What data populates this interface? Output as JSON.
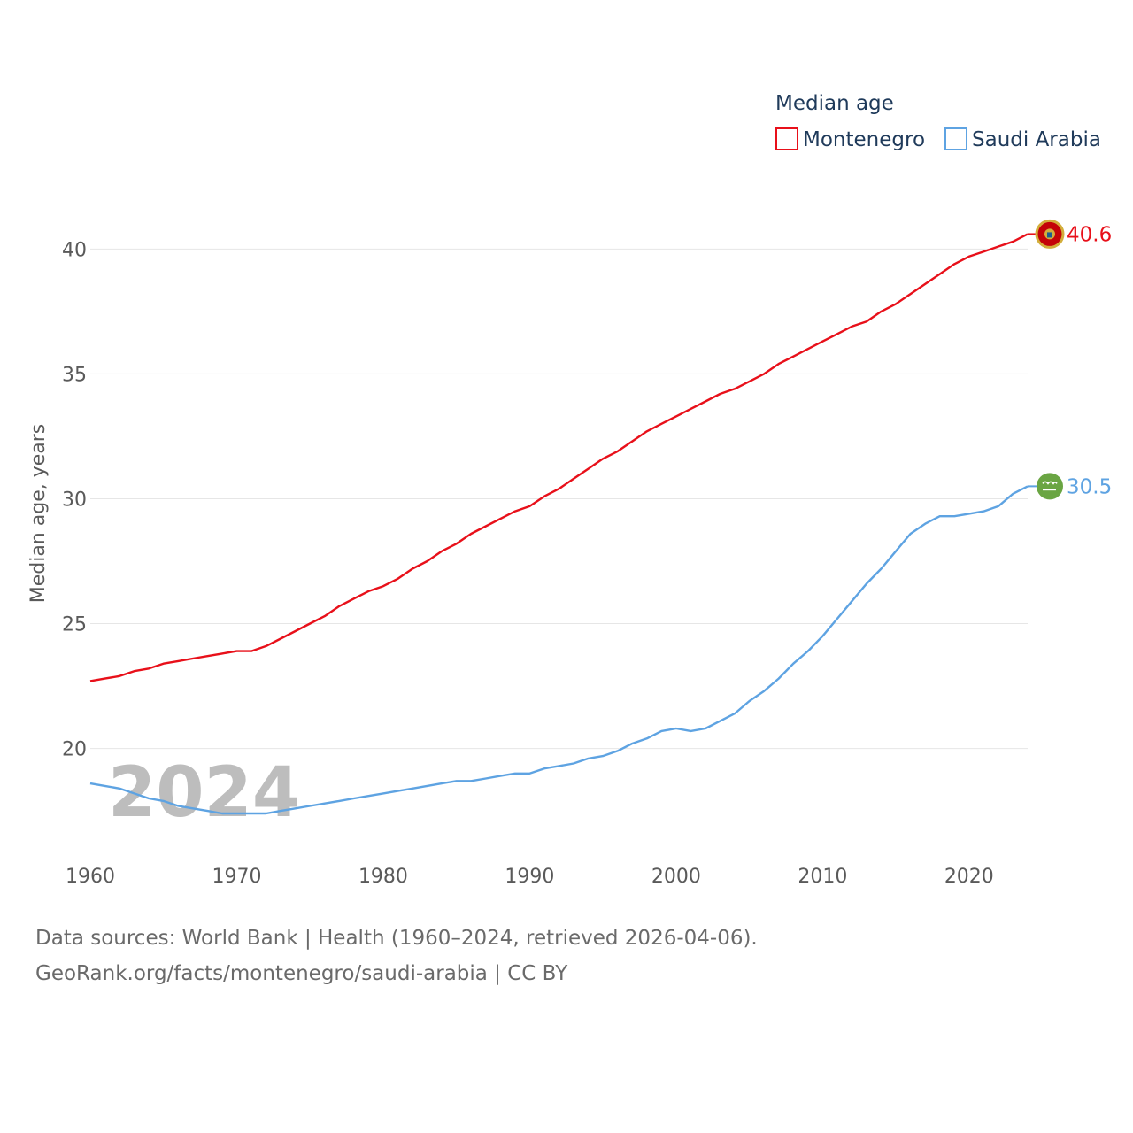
{
  "chart_data": {
    "type": "line",
    "ylabel": "Median age, years",
    "xlabel": "",
    "xlim": [
      1960,
      2024
    ],
    "ylim": [
      16.3,
      42.6
    ],
    "yticks": [
      20,
      25,
      30,
      35,
      40
    ],
    "xticks": [
      1960,
      1970,
      1980,
      1990,
      2000,
      2010,
      2020
    ],
    "grid": true,
    "legend_title": "Median age",
    "legend_position": "top-right",
    "year_watermark": "2024",
    "x": [
      1960,
      1961,
      1962,
      1963,
      1964,
      1965,
      1966,
      1967,
      1968,
      1969,
      1970,
      1971,
      1972,
      1973,
      1974,
      1975,
      1976,
      1977,
      1978,
      1979,
      1980,
      1981,
      1982,
      1983,
      1984,
      1985,
      1986,
      1987,
      1988,
      1989,
      1990,
      1991,
      1992,
      1993,
      1994,
      1995,
      1996,
      1997,
      1998,
      1999,
      2000,
      2001,
      2002,
      2003,
      2004,
      2005,
      2006,
      2007,
      2008,
      2009,
      2010,
      2011,
      2012,
      2013,
      2014,
      2015,
      2016,
      2017,
      2018,
      2019,
      2020,
      2021,
      2022,
      2023,
      2024
    ],
    "series": [
      {
        "name": "Montenegro",
        "color": "#e8101a",
        "end_label": "40.6",
        "flag_icon": "montenegro-flag-icon",
        "values": [
          22.7,
          22.8,
          22.9,
          23.1,
          23.2,
          23.4,
          23.5,
          23.6,
          23.7,
          23.8,
          23.9,
          23.9,
          24.1,
          24.4,
          24.7,
          25.0,
          25.3,
          25.7,
          26.0,
          26.3,
          26.5,
          26.8,
          27.2,
          27.5,
          27.9,
          28.2,
          28.6,
          28.9,
          29.2,
          29.5,
          29.7,
          30.1,
          30.4,
          30.8,
          31.2,
          31.6,
          31.9,
          32.3,
          32.7,
          33.0,
          33.3,
          33.6,
          33.9,
          34.2,
          34.4,
          34.7,
          35.0,
          35.4,
          35.7,
          36.0,
          36.3,
          36.6,
          36.9,
          37.1,
          37.5,
          37.8,
          38.2,
          38.6,
          39.0,
          39.4,
          39.7,
          39.9,
          40.1,
          40.3,
          40.6
        ]
      },
      {
        "name": "Saudi Arabia",
        "color": "#5ea3e2",
        "end_label": "30.5",
        "flag_icon": "saudi-arabia-flag-icon",
        "values": [
          18.6,
          18.5,
          18.4,
          18.2,
          18.0,
          17.9,
          17.7,
          17.6,
          17.5,
          17.4,
          17.4,
          17.4,
          17.4,
          17.5,
          17.6,
          17.7,
          17.8,
          17.9,
          18.0,
          18.1,
          18.2,
          18.3,
          18.4,
          18.5,
          18.6,
          18.7,
          18.7,
          18.8,
          18.9,
          19.0,
          19.0,
          19.2,
          19.3,
          19.4,
          19.6,
          19.7,
          19.9,
          20.2,
          20.4,
          20.7,
          20.8,
          20.7,
          20.8,
          21.1,
          21.4,
          21.9,
          22.3,
          22.8,
          23.4,
          23.9,
          24.5,
          25.2,
          25.9,
          26.6,
          27.2,
          27.9,
          28.6,
          29.0,
          29.3,
          29.3,
          29.4,
          29.5,
          29.7,
          30.2,
          30.5
        ]
      }
    ]
  },
  "footer": {
    "source_line": "Data sources: World Bank | Health (1960–2024, retrieved 2026-04-06).",
    "attribution_line": "GeoRank.org/facts/montenegro/saudi-arabia | CC BY"
  }
}
